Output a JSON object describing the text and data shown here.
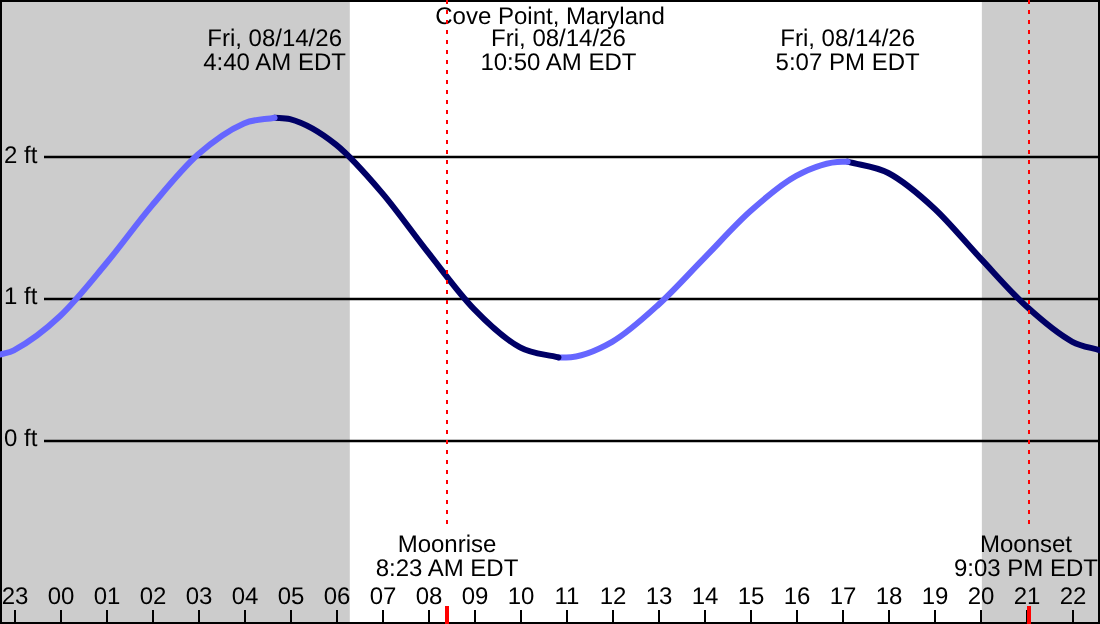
{
  "chart_data": {
    "type": "line",
    "title": "Cove Point, Maryland",
    "xlim": [
      "--08-13T22:42",
      "--08-14T22:36"
    ],
    "xticks": [
      {
        "value": "--08-13T23:00",
        "label": "23"
      },
      {
        "value": "--08-14T00:00",
        "label": "00"
      },
      {
        "value": "--08-14T01:00",
        "label": "01"
      },
      {
        "value": "--08-14T02:00",
        "label": "02"
      },
      {
        "value": "--08-14T03:00",
        "label": "03"
      },
      {
        "value": "--08-14T04:00",
        "label": "04"
      },
      {
        "value": "--08-14T05:00",
        "label": "05"
      },
      {
        "value": "--08-14T06:00",
        "label": "06"
      },
      {
        "value": "--08-14T07:00",
        "label": "07"
      },
      {
        "value": "--08-14T08:00",
        "label": "08"
      },
      {
        "value": "--08-14T09:00",
        "label": "09"
      },
      {
        "value": "--08-14T10:00",
        "label": "10"
      },
      {
        "value": "--08-14T11:00",
        "label": "11"
      },
      {
        "value": "--08-14T12:00",
        "label": "12"
      },
      {
        "value": "--08-14T13:00",
        "label": "13"
      },
      {
        "value": "--08-14T14:00",
        "label": "14"
      },
      {
        "value": "--08-14T15:00",
        "label": "15"
      },
      {
        "value": "--08-14T16:00",
        "label": "16"
      },
      {
        "value": "--08-14T17:00",
        "label": "17"
      },
      {
        "value": "--08-14T18:00",
        "label": "18"
      },
      {
        "value": "--08-14T19:00",
        "label": "19"
      },
      {
        "value": "--08-14T20:00",
        "label": "20"
      },
      {
        "value": "--08-14T21:00",
        "label": "21"
      },
      {
        "value": "--08-14T22:00",
        "label": "22"
      }
    ],
    "ylim": [
      -1.3,
      3.1
    ],
    "yticks": [
      {
        "value": 0,
        "label": "0 ft"
      },
      {
        "value": 1,
        "label": "1 ft"
      },
      {
        "value": 2,
        "label": "2 ft"
      }
    ],
    "grid": "y",
    "marker": "none",
    "series": [
      {
        "color": "#6666ff",
        "x": [
          "--08-13T22:42",
          "--08-13T23:00",
          "--08-14T00:00",
          "--08-14T01:00",
          "--08-14T02:00",
          "--08-14T03:00",
          "--08-14T04:00",
          "--08-14T04:40"
        ],
        "values": [
          0.6,
          0.63,
          0.87,
          1.24,
          1.65,
          2.01,
          2.23,
          2.27
        ]
      },
      {
        "color": "#000066",
        "x": [
          "--08-14T04:40",
          "--08-14T05:00",
          "--08-14T06:00",
          "--08-14T07:00",
          "--08-14T08:00",
          "--08-14T09:00",
          "--08-14T10:00",
          "--08-14T10:50"
        ],
        "values": [
          2.27,
          2.26,
          2.08,
          1.74,
          1.32,
          0.92,
          0.65,
          0.58
        ]
      },
      {
        "color": "#6666ff",
        "x": [
          "--08-14T10:50",
          "--08-14T11:00",
          "--08-14T12:00",
          "--08-14T13:00",
          "--08-14T14:00",
          "--08-14T15:00",
          "--08-14T16:00",
          "--08-14T17:00",
          "--08-14T17:07"
        ],
        "values": [
          0.58,
          0.58,
          0.69,
          0.95,
          1.28,
          1.61,
          1.86,
          1.96,
          1.96
        ]
      },
      {
        "color": "#000066",
        "x": [
          "--08-14T17:07",
          "--08-14T18:00",
          "--08-14T19:00",
          "--08-14T20:00",
          "--08-14T21:00",
          "--08-14T22:00",
          "--08-14T22:36"
        ],
        "values": [
          1.96,
          1.88,
          1.63,
          1.28,
          0.94,
          0.69,
          0.63
        ]
      }
    ],
    "bands": [
      {
        "axis": "x",
        "from": "--08-13T22:42",
        "to": "--08-14T06:18",
        "color": "#cccccc"
      },
      {
        "axis": "x",
        "from": "--08-14T20:02",
        "to": "--08-14T22:36",
        "color": "#cccccc"
      }
    ],
    "ref_lines": [
      {
        "axis": "x",
        "value": "--08-14T08:23",
        "label": "Moonrise\n8:23 AM EDT",
        "color": "#ff0000",
        "line_style": "dotted"
      },
      {
        "axis": "x",
        "value": "--08-14T21:03",
        "label": "Moonset\n9:03 PM EDT",
        "color": "#ff0000",
        "line_style": "dotted"
      }
    ],
    "annotations": [
      "Fri, 08/14/26\n4:40 AM EDT",
      "Fri, 08/14/26\n10:50 AM EDT",
      "Fri, 08/14/26\n5:07 PM EDT"
    ]
  }
}
